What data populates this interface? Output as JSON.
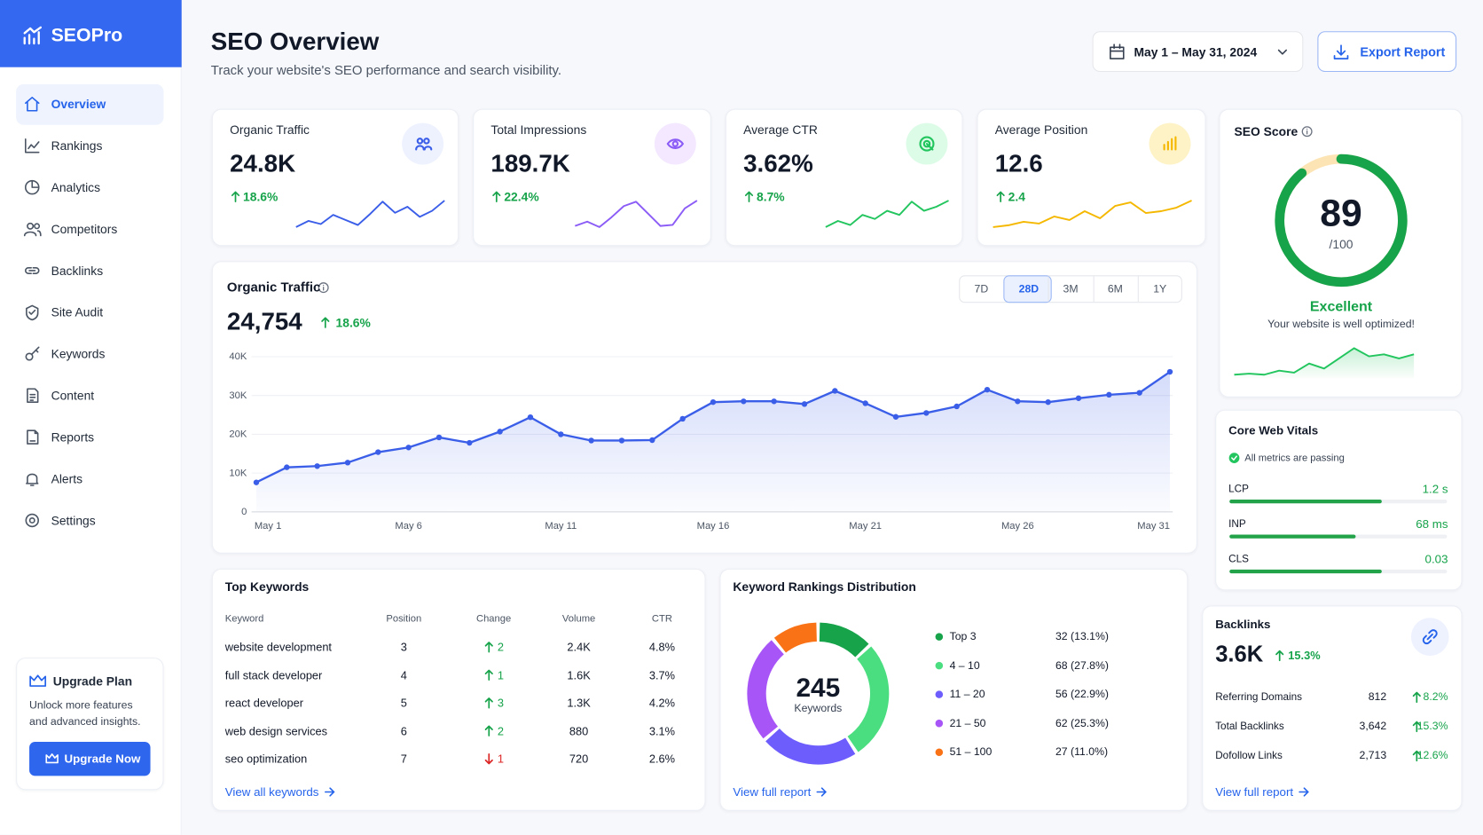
{
  "sidebar": {
    "brand": "SEOPro",
    "nav": [
      "Overview",
      "Rankings",
      "Analytics",
      "Competitors",
      "Backlinks",
      "Site Audit",
      "Keywords",
      "Content",
      "Reports",
      "Alerts",
      "Settings"
    ],
    "active": "Overview",
    "upgrade": {
      "title": "Upgrade Plan",
      "text": "Unlock more features and advanced insights.",
      "button": "Upgrade Now"
    }
  },
  "header": {
    "title": "SEO Overview",
    "subtitle": "Track your website's SEO performance and search visibility.",
    "date_range": "May 1 – May 31, 2024",
    "export": "Export Report"
  },
  "kpis": [
    {
      "label": "Organic Traffic",
      "value": "24.8K",
      "change": "18.6%",
      "color": "#3b5ee8",
      "tint": "#eef2ff",
      "trend": [
        2,
        8,
        5,
        14,
        9,
        4,
        15,
        27,
        16,
        22,
        12,
        18,
        28
      ]
    },
    {
      "label": "Total Impressions",
      "value": "189.7K",
      "change": "22.4%",
      "color": "#8b5cf6",
      "tint": "#f3e8ff",
      "trend": [
        4,
        8,
        3,
        12,
        22,
        26,
        15,
        4,
        5,
        20,
        27
      ]
    },
    {
      "label": "Average CTR",
      "value": "3.62%",
      "change": "8.7%",
      "color": "#22c55e",
      "tint": "#dcfce7",
      "trend": [
        2,
        8,
        4,
        14,
        10,
        18,
        14,
        27,
        18,
        22,
        28
      ]
    },
    {
      "label": "Average Position",
      "value": "12.6",
      "change": "2.4",
      "color": "#f5b800",
      "tint": "#fef3c7",
      "trend": [
        0,
        2,
        6,
        4,
        12,
        8,
        18,
        10,
        24,
        28,
        16,
        18,
        22,
        30
      ]
    }
  ],
  "seo_score": {
    "title": "SEO Score",
    "score": 89,
    "max": 100,
    "max_label": "/100",
    "rating": "Excellent",
    "note": "Your website is well optimized!",
    "color": "#16a34a",
    "trend": [
      2,
      3,
      2,
      6,
      4,
      13,
      8,
      18,
      28,
      20,
      22,
      18,
      22
    ]
  },
  "chart_data": {
    "type": "line",
    "title": "Organic Traffic",
    "total": "24,754",
    "change": "18.6%",
    "ranges": [
      "7D",
      "28D",
      "3M",
      "6M",
      "1Y"
    ],
    "active_range": "28D",
    "categories": [
      "May 1",
      null,
      null,
      null,
      null,
      "May 6",
      null,
      null,
      null,
      null,
      "May 11",
      null,
      null,
      null,
      null,
      "May 16",
      null,
      null,
      null,
      null,
      "May 21",
      null,
      null,
      null,
      null,
      "May 26",
      null,
      null,
      null,
      null,
      "May 31"
    ],
    "values": [
      7600,
      11500,
      11800,
      12700,
      15400,
      16600,
      19200,
      17800,
      20700,
      24400,
      20000,
      18400,
      18400,
      18500,
      24000,
      28300,
      28500,
      28500,
      27800,
      31200,
      28000,
      24500,
      25500,
      27200,
      31500,
      28500,
      28300,
      29300,
      30200,
      30700,
      36100
    ],
    "color": "#3b5ee8",
    "ylim": [
      0,
      40000
    ],
    "yticks": [
      0,
      {
        "value": 10000,
        "label": "10K"
      },
      {
        "value": 20000,
        "label": "20K"
      },
      {
        "value": 30000,
        "label": "30K"
      },
      {
        "value": 40000,
        "label": "40K"
      }
    ],
    "grid": true
  },
  "top_keywords": {
    "title": "Top Keywords",
    "columns": [
      "Keyword",
      "Position",
      "Change",
      "Volume",
      "CTR"
    ],
    "rows": [
      {
        "keyword": "website development",
        "position": 3,
        "change": 2,
        "direction": "up",
        "volume": "2.4K",
        "ctr": "4.8%"
      },
      {
        "keyword": "full stack developer",
        "position": 4,
        "change": 1,
        "direction": "up",
        "volume": "1.6K",
        "ctr": "3.7%"
      },
      {
        "keyword": "react developer",
        "position": 5,
        "change": 3,
        "direction": "up",
        "volume": "1.3K",
        "ctr": "4.2%"
      },
      {
        "keyword": "web design services",
        "position": 6,
        "change": 2,
        "direction": "up",
        "volume": "880",
        "ctr": "3.1%"
      },
      {
        "keyword": "seo optimization",
        "position": 7,
        "change": 1,
        "direction": "down",
        "volume": "720",
        "ctr": "2.6%"
      }
    ],
    "link": "View all keywords"
  },
  "rankings_distribution": {
    "type": "donut",
    "title": "Keyword Rankings Distribution",
    "total": 245,
    "total_label": "Keywords",
    "categories": [
      "Top 3",
      "4 – 10",
      "11 – 20",
      "21 – 50",
      "51 – 100"
    ],
    "values": [
      32,
      68,
      56,
      62,
      27
    ],
    "value_labels": [
      "32 (13.1%)",
      "68 (27.8%)",
      "56 (22.9%)",
      "62 (25.3%)",
      "27 (11.0%)"
    ],
    "colors": [
      "#16a34a",
      "#4ade80",
      "#6d5dfc",
      "#a855f7",
      "#f97316"
    ],
    "link": "View full report"
  },
  "core_web_vitals": {
    "title": "Core Web Vitals",
    "status": "All metrics are passing",
    "metrics": [
      {
        "name": "LCP",
        "value": "1.2 s",
        "progress": 70
      },
      {
        "name": "INP",
        "value": "68 ms",
        "progress": 58
      },
      {
        "name": "CLS",
        "value": "0.03",
        "progress": 70
      }
    ]
  },
  "backlinks": {
    "title": "Backlinks",
    "value": "3.6K",
    "change": "15.3%",
    "rows": [
      {
        "name": "Referring Domains",
        "value": "812",
        "change": "8.2%"
      },
      {
        "name": "Total Backlinks",
        "value": "3,642",
        "change": "15.3%"
      },
      {
        "name": "Dofollow Links",
        "value": "2,713",
        "change": "12.6%"
      }
    ],
    "link": "View full report"
  }
}
